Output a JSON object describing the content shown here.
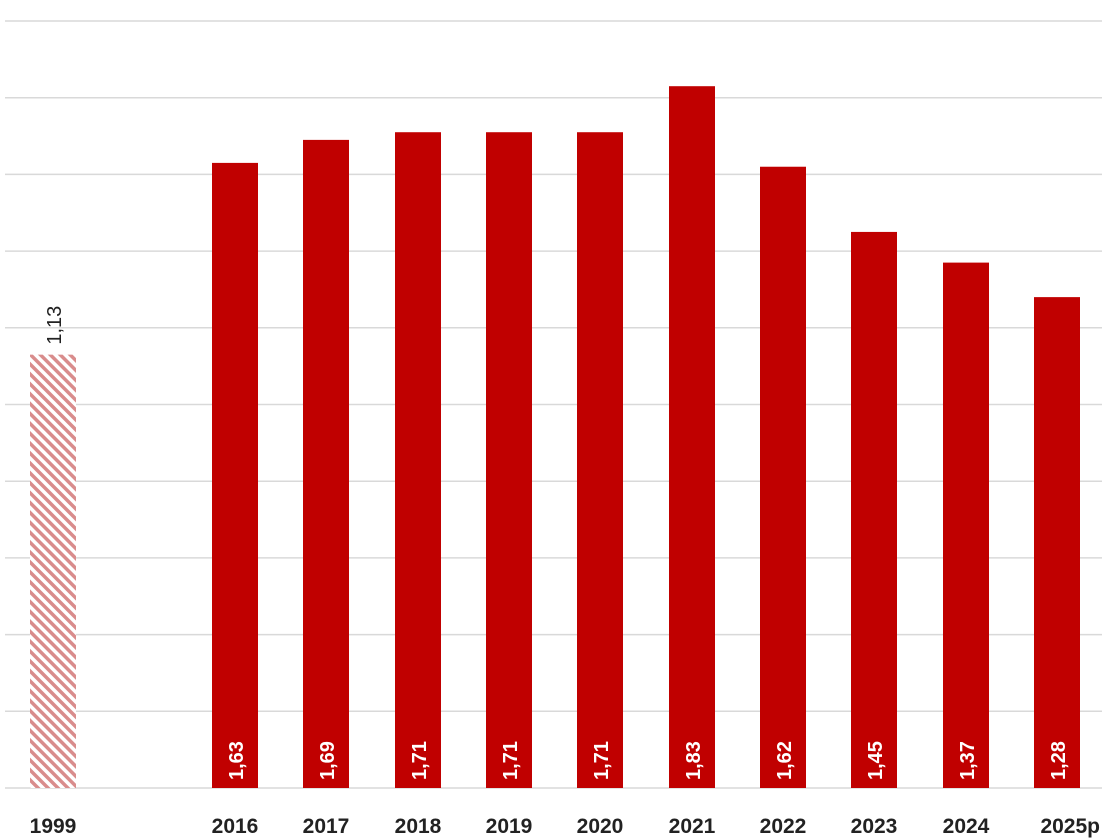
{
  "chart_data": {
    "type": "bar",
    "title": "",
    "xlabel": "",
    "ylabel": "",
    "categories": [
      "1999",
      "2016",
      "2017",
      "2018",
      "2019",
      "2020",
      "2021",
      "2022",
      "2023",
      "2024",
      "2025p"
    ],
    "values": [
      1.13,
      1.63,
      1.69,
      1.71,
      1.71,
      1.71,
      1.83,
      1.62,
      1.45,
      1.37,
      1.28
    ],
    "value_labels": [
      "1,13",
      "1,63",
      "1,69",
      "1,71",
      "1,71",
      "1,71",
      "1,83",
      "1,62",
      "1,45",
      "1,37",
      "1,28"
    ],
    "ylim": [
      0,
      2.0
    ],
    "grid": true,
    "gridlines": [
      0,
      0.2,
      0.4,
      0.6,
      0.8,
      1.0,
      1.2,
      1.4,
      1.6,
      1.8,
      2.0
    ],
    "legend": "none",
    "colors": {
      "bar": "#c00000",
      "hatch": "#d98c8c",
      "grid": "#d9d9d9"
    },
    "bar_styles": [
      "hatched",
      "solid",
      "solid",
      "solid",
      "solid",
      "solid",
      "solid",
      "solid",
      "solid",
      "solid",
      "solid"
    ]
  }
}
